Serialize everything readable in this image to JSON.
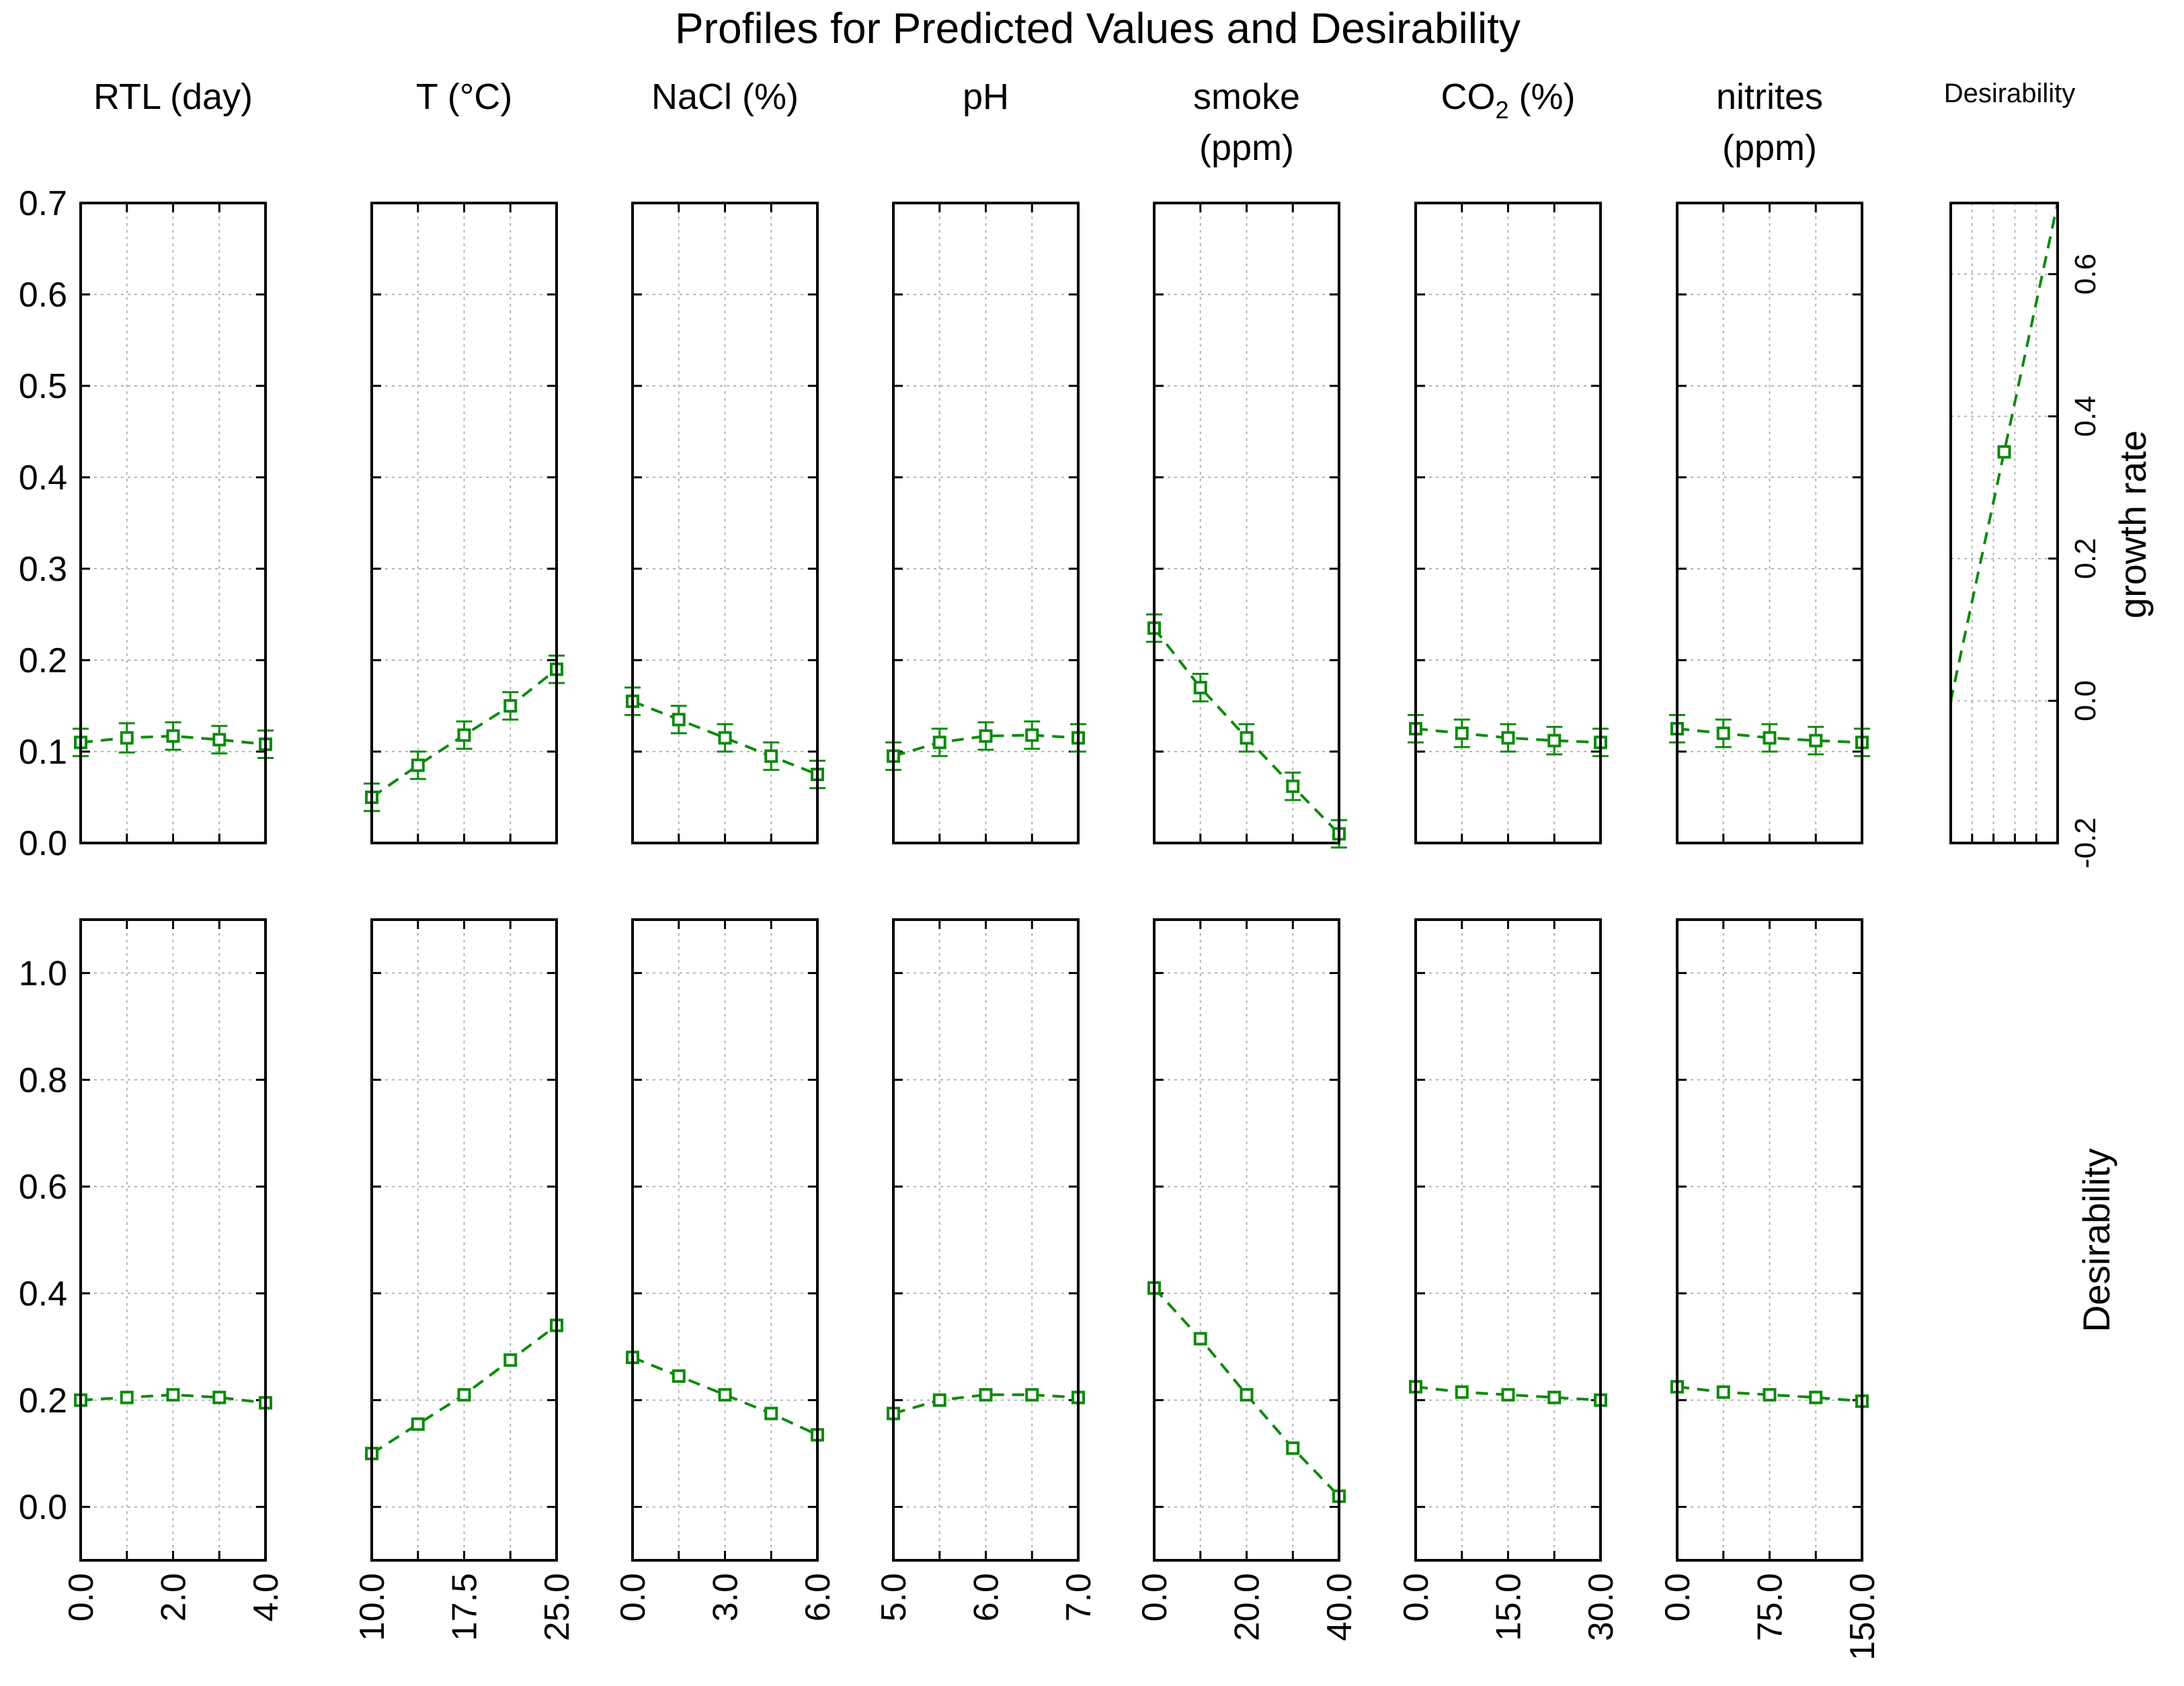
{
  "chart_data": {
    "type": "line",
    "title": "Profiles for Predicted Values and Desirability",
    "colors": {
      "series": "#0d8a0d",
      "frame": "#000000",
      "grid": "#b4b4b4",
      "text": "#000000"
    },
    "panel_x_range": [
      0,
      4
    ],
    "factors": [
      {
        "name": "RTL (day)",
        "title_lines": [
          "RTL (day)"
        ],
        "tick_labels": [
          "0.0",
          "2.0",
          "4.0"
        ],
        "x": [
          0.0,
          1.0,
          2.0,
          3.0,
          4.0
        ],
        "growth_rate": [
          0.11,
          0.115,
          0.117,
          0.113,
          0.108
        ],
        "growth_rate_ci": [
          0.015,
          0.016,
          0.015,
          0.015,
          0.015
        ],
        "desirability": [
          0.2,
          0.205,
          0.21,
          0.205,
          0.195
        ]
      },
      {
        "name": "T (°C)",
        "title_lines": [
          "T (°C)"
        ],
        "tick_labels": [
          "10.0",
          "17.5",
          "25.0"
        ],
        "x": [
          10.0,
          13.75,
          17.5,
          21.25,
          25.0
        ],
        "growth_rate": [
          0.05,
          0.085,
          0.118,
          0.15,
          0.19
        ],
        "growth_rate_ci": [
          0.015,
          0.015,
          0.015,
          0.015,
          0.015
        ],
        "desirability": [
          0.1,
          0.155,
          0.21,
          0.275,
          0.34
        ]
      },
      {
        "name": "NaCl (%)",
        "title_lines": [
          "NaCl (%)"
        ],
        "tick_labels": [
          "0.0",
          "3.0",
          "6.0"
        ],
        "x": [
          0.0,
          1.5,
          3.0,
          4.5,
          6.0
        ],
        "growth_rate": [
          0.155,
          0.135,
          0.115,
          0.095,
          0.075
        ],
        "growth_rate_ci": [
          0.015,
          0.015,
          0.015,
          0.015,
          0.015
        ],
        "desirability": [
          0.28,
          0.245,
          0.21,
          0.175,
          0.135
        ]
      },
      {
        "name": "pH",
        "title_lines": [
          "pH"
        ],
        "tick_labels": [
          "5.0",
          "6.0",
          "7.0"
        ],
        "x": [
          5.0,
          5.5,
          6.0,
          6.5,
          7.0
        ],
        "growth_rate": [
          0.095,
          0.11,
          0.117,
          0.118,
          0.115
        ],
        "growth_rate_ci": [
          0.015,
          0.015,
          0.015,
          0.015,
          0.015
        ],
        "desirability": [
          0.175,
          0.2,
          0.21,
          0.21,
          0.205
        ]
      },
      {
        "name": "smoke (ppm)",
        "title_lines": [
          "smoke",
          "(ppm)"
        ],
        "tick_labels": [
          "0.0",
          "20.0",
          "40.0"
        ],
        "x": [
          0.0,
          10.0,
          20.0,
          30.0,
          40.0
        ],
        "growth_rate": [
          0.235,
          0.17,
          0.115,
          0.062,
          0.01
        ],
        "growth_rate_ci": [
          0.015,
          0.015,
          0.015,
          0.015,
          0.015
        ],
        "desirability": [
          0.41,
          0.315,
          0.21,
          0.11,
          0.02
        ]
      },
      {
        "name": "CO2 (%)",
        "title_lines": [
          "CO2 (%)"
        ],
        "tick_labels": [
          "0.0",
          "15.0",
          "30.0"
        ],
        "x": [
          0.0,
          7.5,
          15.0,
          22.5,
          30.0
        ],
        "growth_rate": [
          0.125,
          0.12,
          0.115,
          0.112,
          0.11
        ],
        "growth_rate_ci": [
          0.015,
          0.015,
          0.015,
          0.015,
          0.015
        ],
        "desirability": [
          0.225,
          0.215,
          0.21,
          0.205,
          0.2
        ]
      },
      {
        "name": "nitrites (ppm)",
        "title_lines": [
          "nitrites",
          "(ppm)"
        ],
        "tick_labels": [
          "0.0",
          "75.0",
          "150.0"
        ],
        "x": [
          0.0,
          37.5,
          75.0,
          112.5,
          150.0
        ],
        "growth_rate": [
          0.125,
          0.12,
          0.115,
          0.112,
          0.11
        ],
        "growth_rate_ci": [
          0.015,
          0.015,
          0.015,
          0.015,
          0.015
        ],
        "desirability": [
          0.225,
          0.215,
          0.21,
          0.205,
          0.198
        ]
      }
    ],
    "growth_rate_axis": {
      "label": "growth rate",
      "ylim": [
        0.0,
        0.7
      ],
      "ticks": [
        "0.0",
        "0.1",
        "0.2",
        "0.3",
        "0.4",
        "0.5",
        "0.6",
        "0.7"
      ]
    },
    "desirability_axis": {
      "label": "Desirability",
      "ylim": [
        -0.1,
        1.1
      ],
      "ticks": [
        "0.0",
        "0.2",
        "0.4",
        "0.6",
        "0.8",
        "1.0"
      ]
    },
    "desirability_function": {
      "title": "Desirability",
      "axis_ylim": [
        -0.2,
        0.7
      ],
      "tick_labels": [
        "-0.2",
        "0.0",
        "0.2",
        "0.4",
        "0.6"
      ],
      "growth_rate": [
        -0.2,
        0.0,
        0.35,
        0.7
      ],
      "desirability": [
        0.0,
        0.0,
        0.5,
        1.0
      ]
    }
  }
}
